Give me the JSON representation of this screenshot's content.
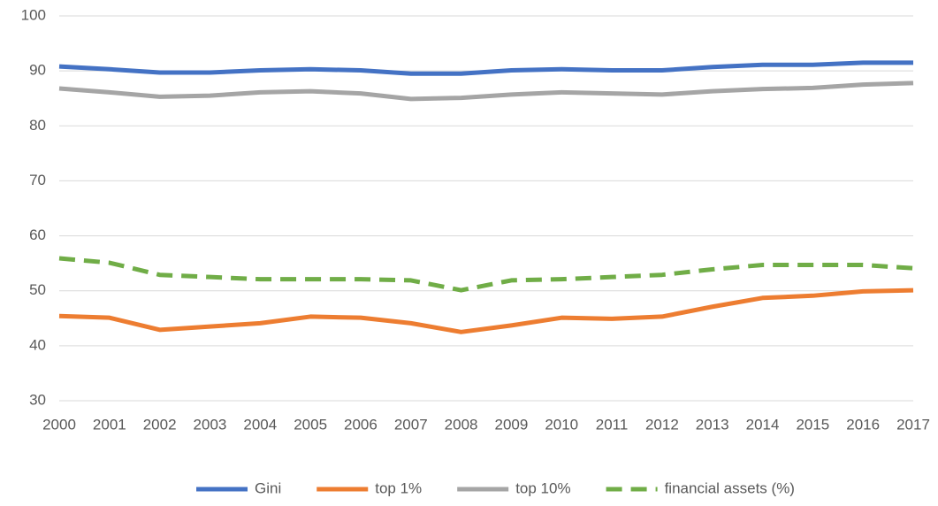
{
  "chart_data": {
    "type": "line",
    "x": [
      2000,
      2001,
      2002,
      2003,
      2004,
      2005,
      2006,
      2007,
      2008,
      2009,
      2010,
      2011,
      2012,
      2013,
      2014,
      2015,
      2016,
      2017
    ],
    "xlim": [
      2000,
      2017
    ],
    "xticks": [
      2000,
      2001,
      2002,
      2003,
      2004,
      2005,
      2006,
      2007,
      2008,
      2009,
      2010,
      2011,
      2012,
      2013,
      2014,
      2015,
      2016,
      2017
    ],
    "ylim": [
      30,
      100
    ],
    "yticks": [
      30,
      40,
      50,
      60,
      70,
      80,
      90,
      100
    ],
    "grid": true,
    "legend": "bottom",
    "series": [
      {
        "name": "Gini",
        "color": "#4472c4",
        "dashed": false,
        "values": [
          90.8,
          90.3,
          89.7,
          89.7,
          90.1,
          90.3,
          90.1,
          89.5,
          89.5,
          90.1,
          90.3,
          90.1,
          90.1,
          90.7,
          91.1,
          91.1,
          91.5,
          91.5
        ]
      },
      {
        "name": "top 1%",
        "color": "#ed7d31",
        "dashed": false,
        "values": [
          45.4,
          45.1,
          42.9,
          43.5,
          44.1,
          45.3,
          45.1,
          44.1,
          42.5,
          43.7,
          45.1,
          44.9,
          45.3,
          47.1,
          48.7,
          49.1,
          49.9,
          50.1
        ]
      },
      {
        "name": "top 10%",
        "color": "#a5a5a5",
        "dashed": false,
        "values": [
          86.8,
          86.1,
          85.3,
          85.5,
          86.1,
          86.3,
          85.9,
          84.9,
          85.1,
          85.7,
          86.1,
          85.9,
          85.7,
          86.3,
          86.7,
          86.9,
          87.5,
          87.8
        ]
      },
      {
        "name": "financial assets (%)",
        "color": "#70ad47",
        "dashed": true,
        "values": [
          55.9,
          55.1,
          52.9,
          52.5,
          52.1,
          52.1,
          52.1,
          51.9,
          50.1,
          51.9,
          52.1,
          52.5,
          52.9,
          53.9,
          54.7,
          54.7,
          54.7,
          54.1
        ]
      }
    ]
  }
}
